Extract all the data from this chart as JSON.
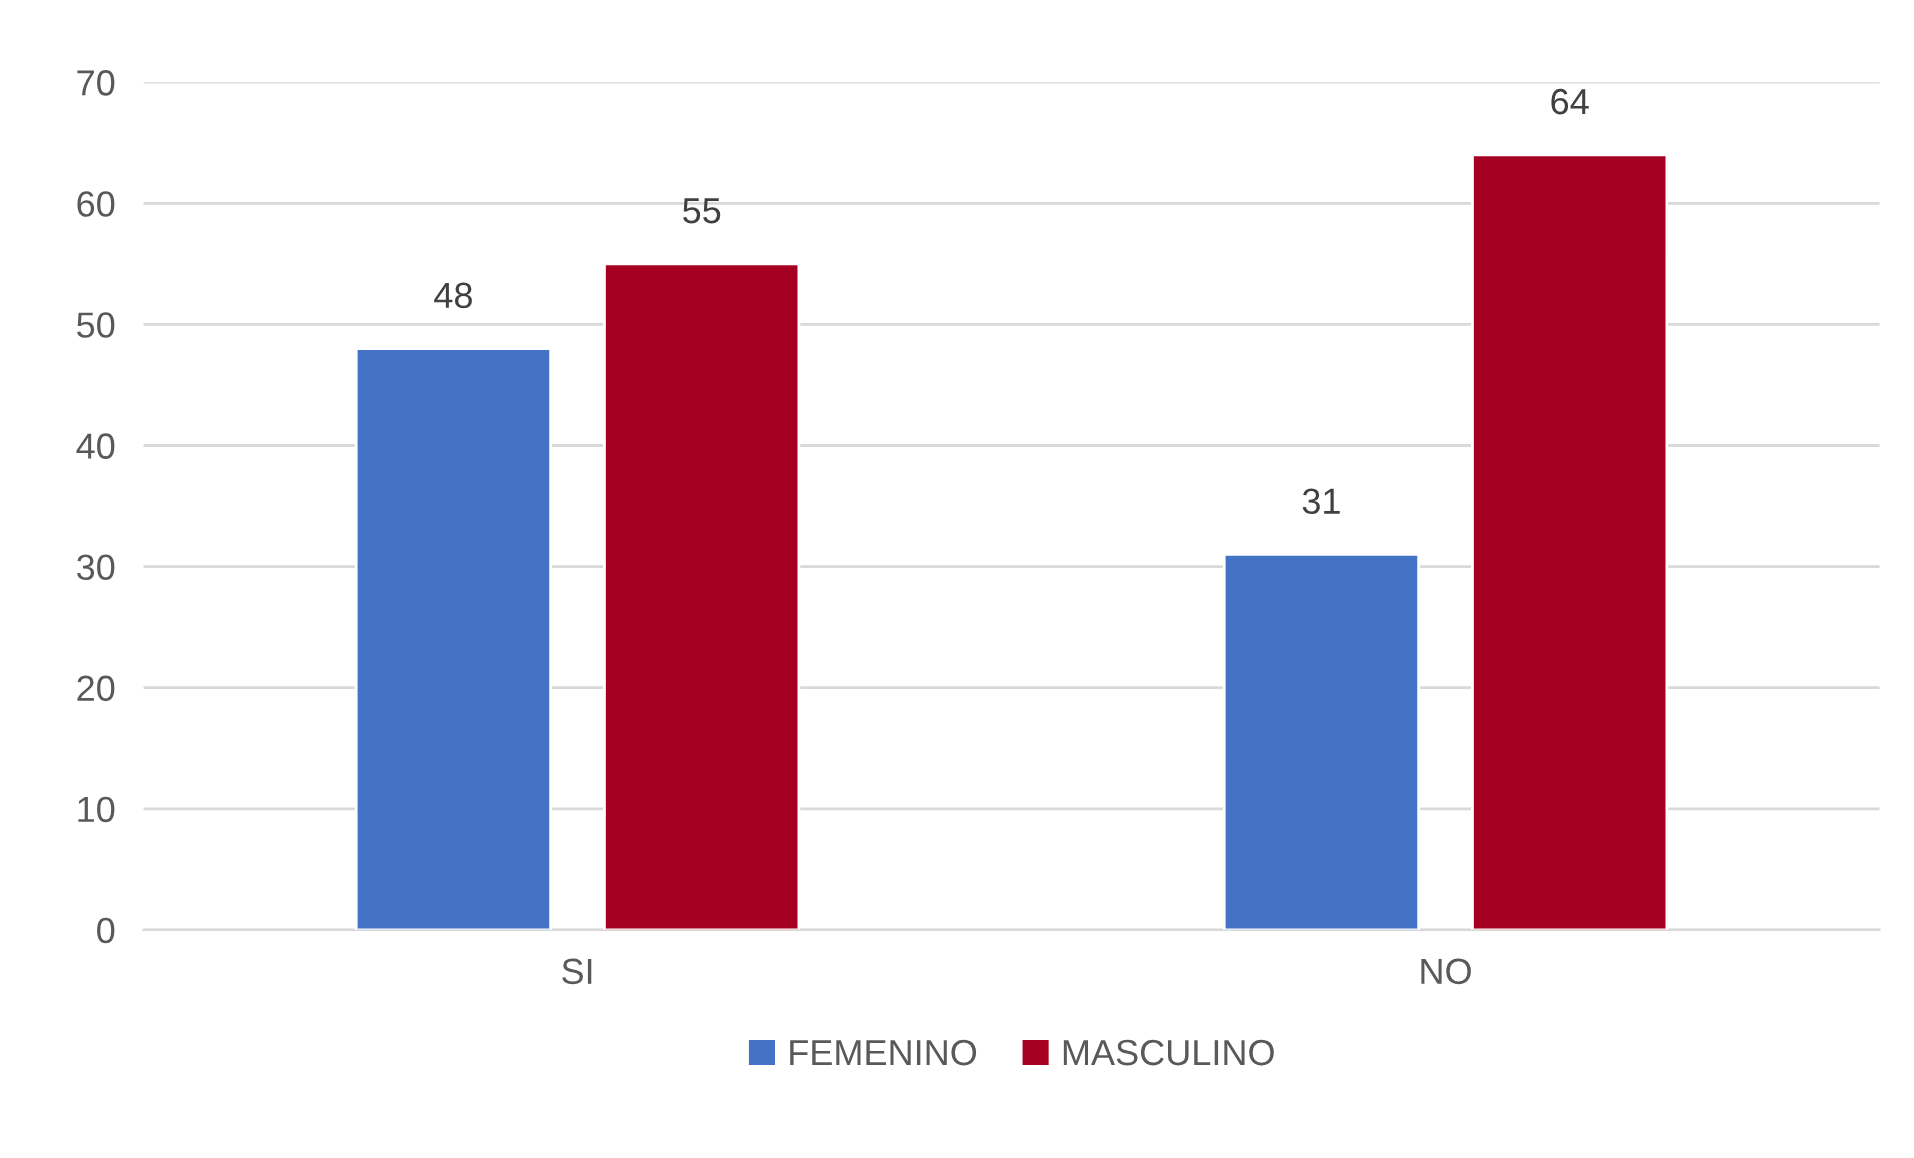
{
  "chart_data": {
    "type": "bar",
    "categories": [
      "SI",
      "NO"
    ],
    "series": [
      {
        "name": "FEMENINO",
        "color": "#4472c4",
        "values": [
          48,
          31
        ]
      },
      {
        "name": "MASCULINO",
        "color": "#a50021",
        "values": [
          55,
          64
        ]
      }
    ],
    "ylim": [
      0,
      70
    ],
    "yticks": [
      0,
      10,
      20,
      30,
      40,
      50,
      60,
      70
    ],
    "grid": "y",
    "legend": "bottom",
    "data_labels": true
  }
}
